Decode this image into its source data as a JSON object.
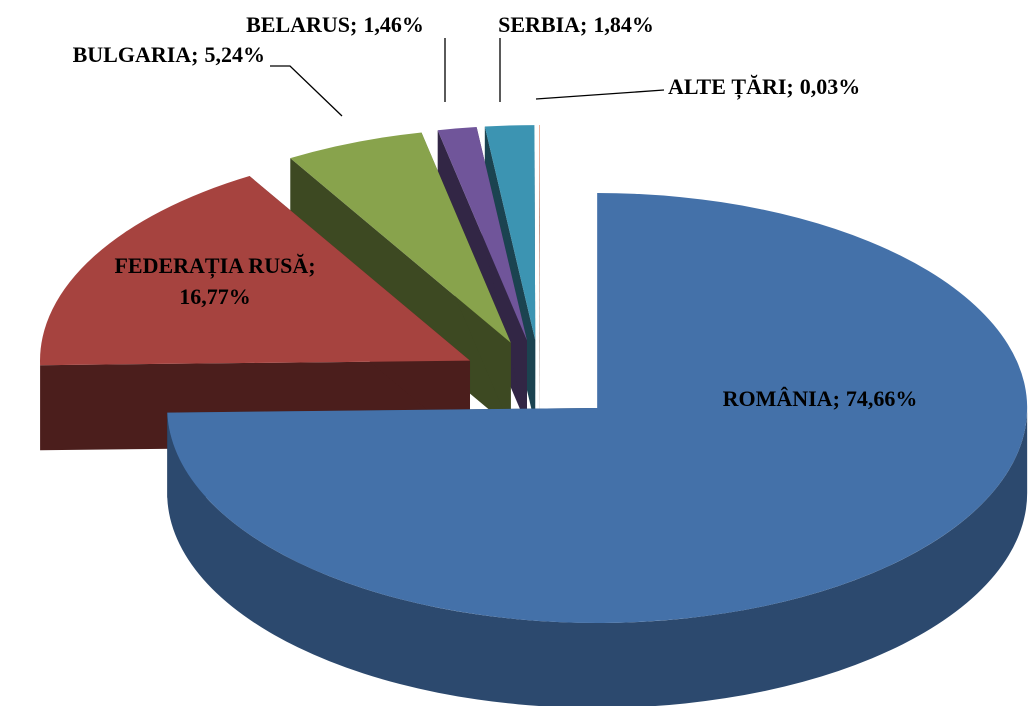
{
  "chart_data": {
    "type": "pie3d",
    "categories": [
      "ROMÂNIA",
      "FEDERAȚIA RUSĂ",
      "BULGARIA",
      "BELARUS",
      "SERBIA",
      "ALTE ȚĂRI"
    ],
    "values": [
      74.66,
      16.77,
      5.24,
      1.46,
      1.84,
      0.03
    ],
    "value_labels": [
      "74,66%",
      "16,77%",
      "5,24%",
      "1,46%",
      "1,84%",
      "0,03%"
    ],
    "separator": ";",
    "colors": [
      "#4471a9",
      "#a6433f",
      "#88a34c",
      "#70559a",
      "#3c94b2",
      "#eaa184"
    ]
  }
}
